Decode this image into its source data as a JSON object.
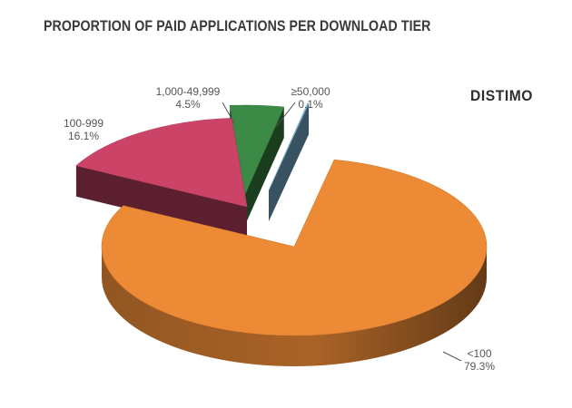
{
  "title": "PROPORTION OF PAID APPLICATIONS PER DOWNLOAD TIER",
  "brand": "DISTIMO",
  "colors": {
    "<100": "#ec8a36",
    "100-999": "#cb4468",
    "1,000-49,999": "#3b8a45",
    "≥50,000": "#7fb6d9"
  },
  "chart_data": {
    "type": "pie",
    "title": "PROPORTION OF PAID APPLICATIONS PER DOWNLOAD TIER",
    "exploded": true,
    "three_d": true,
    "slices": [
      {
        "label": "<100",
        "value": 79.3,
        "display": "79.3%"
      },
      {
        "label": "100-999",
        "value": 16.1,
        "display": "16.1%"
      },
      {
        "label": "1,000-49,999",
        "value": 4.5,
        "display": "4.5%"
      },
      {
        "label": "≥50,000",
        "value": 0.1,
        "display": "0.1%"
      }
    ]
  }
}
